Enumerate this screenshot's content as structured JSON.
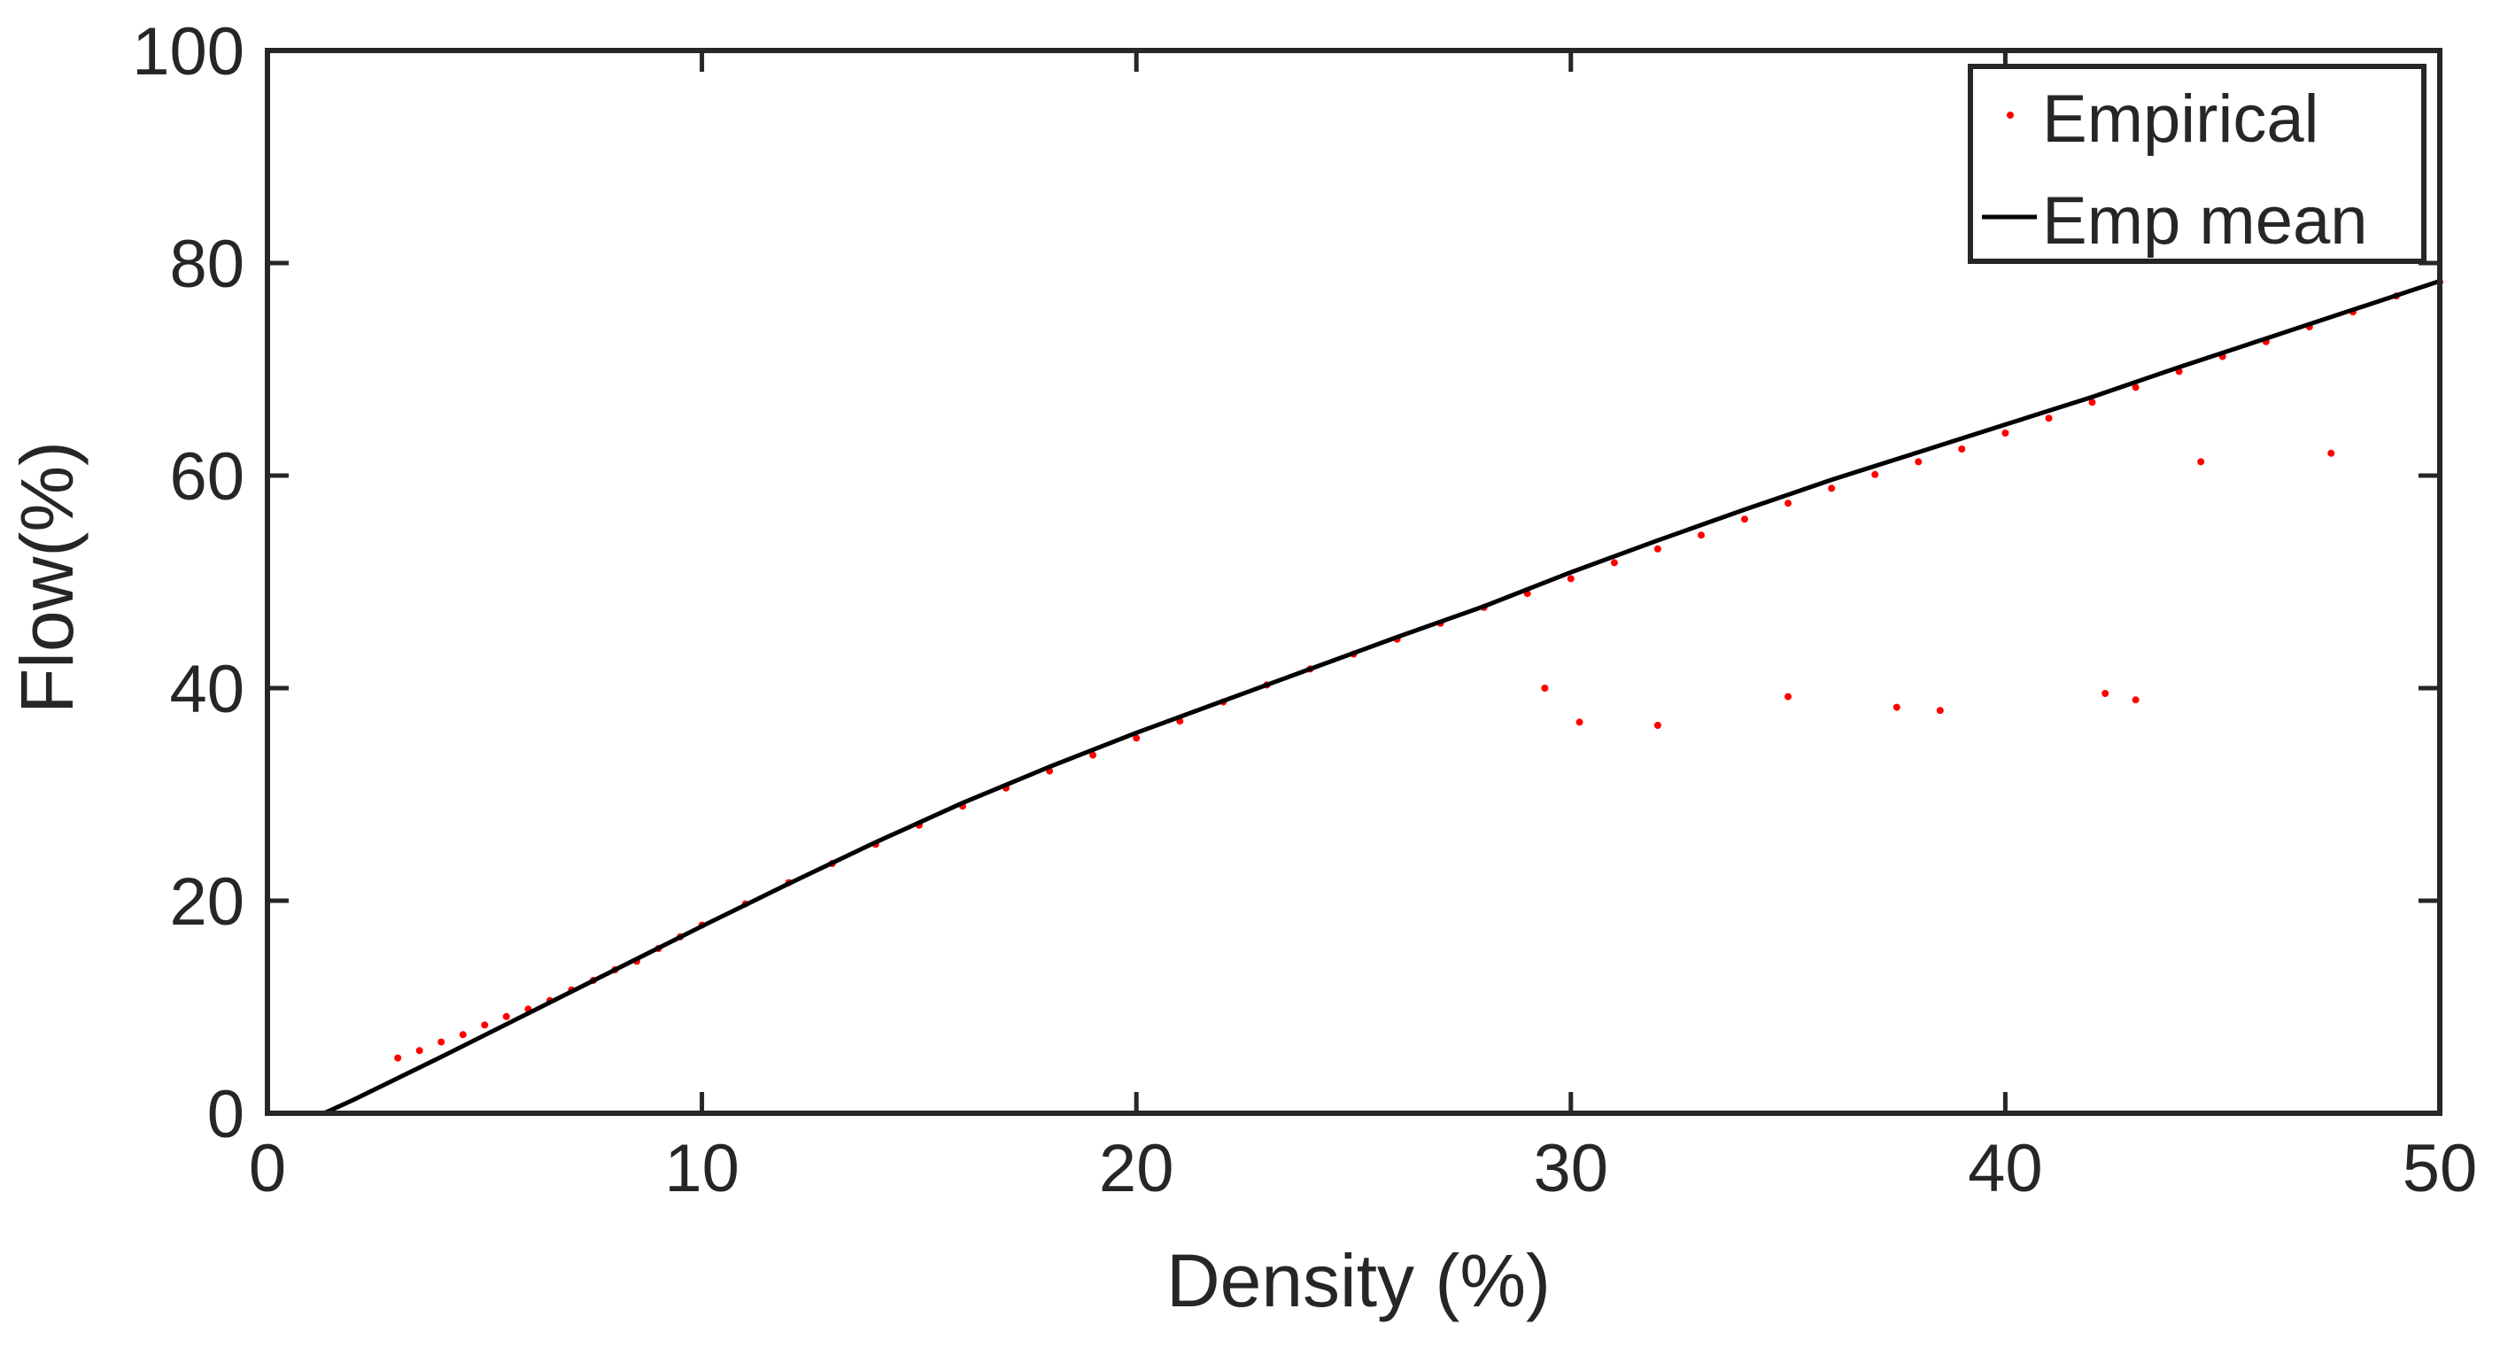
{
  "chart_data": {
    "type": "scatter",
    "title": "",
    "xlabel": "Density (%)",
    "ylabel": "Flow(%)",
    "xlim": [
      0,
      50
    ],
    "ylim": [
      0,
      100
    ],
    "xticks": [
      0,
      10,
      20,
      30,
      40,
      50
    ],
    "yticks": [
      0,
      20,
      40,
      60,
      80,
      100
    ],
    "grid": false,
    "legend_position": "top-right",
    "colors": {
      "empirical": "#ff0000",
      "mean": "#000000",
      "axes": "#262626"
    },
    "series": [
      {
        "name": "Empirical",
        "kind": "scatter",
        "color": "#ff0000",
        "x": [
          3.0,
          3.5,
          4.0,
          4.5,
          5.0,
          5.5,
          6.0,
          6.5,
          7.0,
          7.5,
          8.0,
          8.5,
          9.0,
          9.5,
          10.0,
          11.0,
          12.0,
          13.0,
          14.0,
          15.0,
          16.0,
          17.0,
          18.0,
          19.0,
          20.0,
          21.0,
          22.0,
          23.0,
          24.0,
          25.0,
          26.0,
          27.0,
          28.0,
          29.0,
          30.0,
          31.0,
          32.0,
          33.0,
          34.0,
          35.0,
          36.0,
          37.0,
          38.0,
          39.0,
          40.0,
          41.0,
          42.0,
          43.0,
          44.0,
          45.0,
          46.0,
          47.0,
          48.0,
          49.0,
          50.0,
          29.4,
          30.2,
          32.0,
          35.0,
          37.5,
          38.5,
          42.3,
          43.0,
          44.5,
          47.5
        ],
        "y": [
          5.2,
          5.9,
          6.7,
          7.4,
          8.3,
          9.1,
          9.8,
          10.6,
          11.6,
          12.5,
          13.5,
          14.3,
          15.5,
          16.6,
          17.7,
          19.7,
          21.7,
          23.5,
          25.3,
          27.1,
          28.9,
          30.6,
          32.2,
          33.7,
          35.3,
          36.9,
          38.7,
          40.3,
          41.8,
          43.2,
          44.6,
          46.1,
          47.6,
          48.9,
          50.3,
          51.8,
          53.1,
          54.4,
          55.9,
          57.4,
          58.8,
          60.1,
          61.3,
          62.5,
          64.0,
          65.4,
          66.9,
          68.3,
          69.8,
          71.2,
          72.6,
          74.0,
          75.4,
          76.9,
          78.2,
          40.0,
          36.8,
          36.5,
          39.2,
          38.2,
          37.9,
          39.5,
          38.9,
          61.3,
          62.1
        ]
      },
      {
        "name": "Emp mean",
        "kind": "line",
        "color": "#000000",
        "x": [
          1.3,
          2.0,
          4.0,
          6.0,
          8.0,
          10.0,
          12.0,
          14.0,
          16.0,
          18.0,
          20.0,
          22.0,
          24.0,
          26.0,
          28.0,
          30.0,
          32.0,
          34.0,
          36.0,
          38.0,
          40.0,
          42.0,
          44.0,
          46.0,
          48.0,
          50.0
        ],
        "y": [
          0.0,
          1.3,
          5.3,
          9.4,
          13.5,
          17.6,
          21.6,
          25.5,
          29.2,
          32.6,
          35.8,
          38.8,
          41.8,
          44.8,
          47.7,
          50.9,
          53.9,
          56.8,
          59.6,
          62.2,
          64.8,
          67.4,
          70.2,
          72.9,
          75.6,
          78.3
        ]
      }
    ]
  }
}
